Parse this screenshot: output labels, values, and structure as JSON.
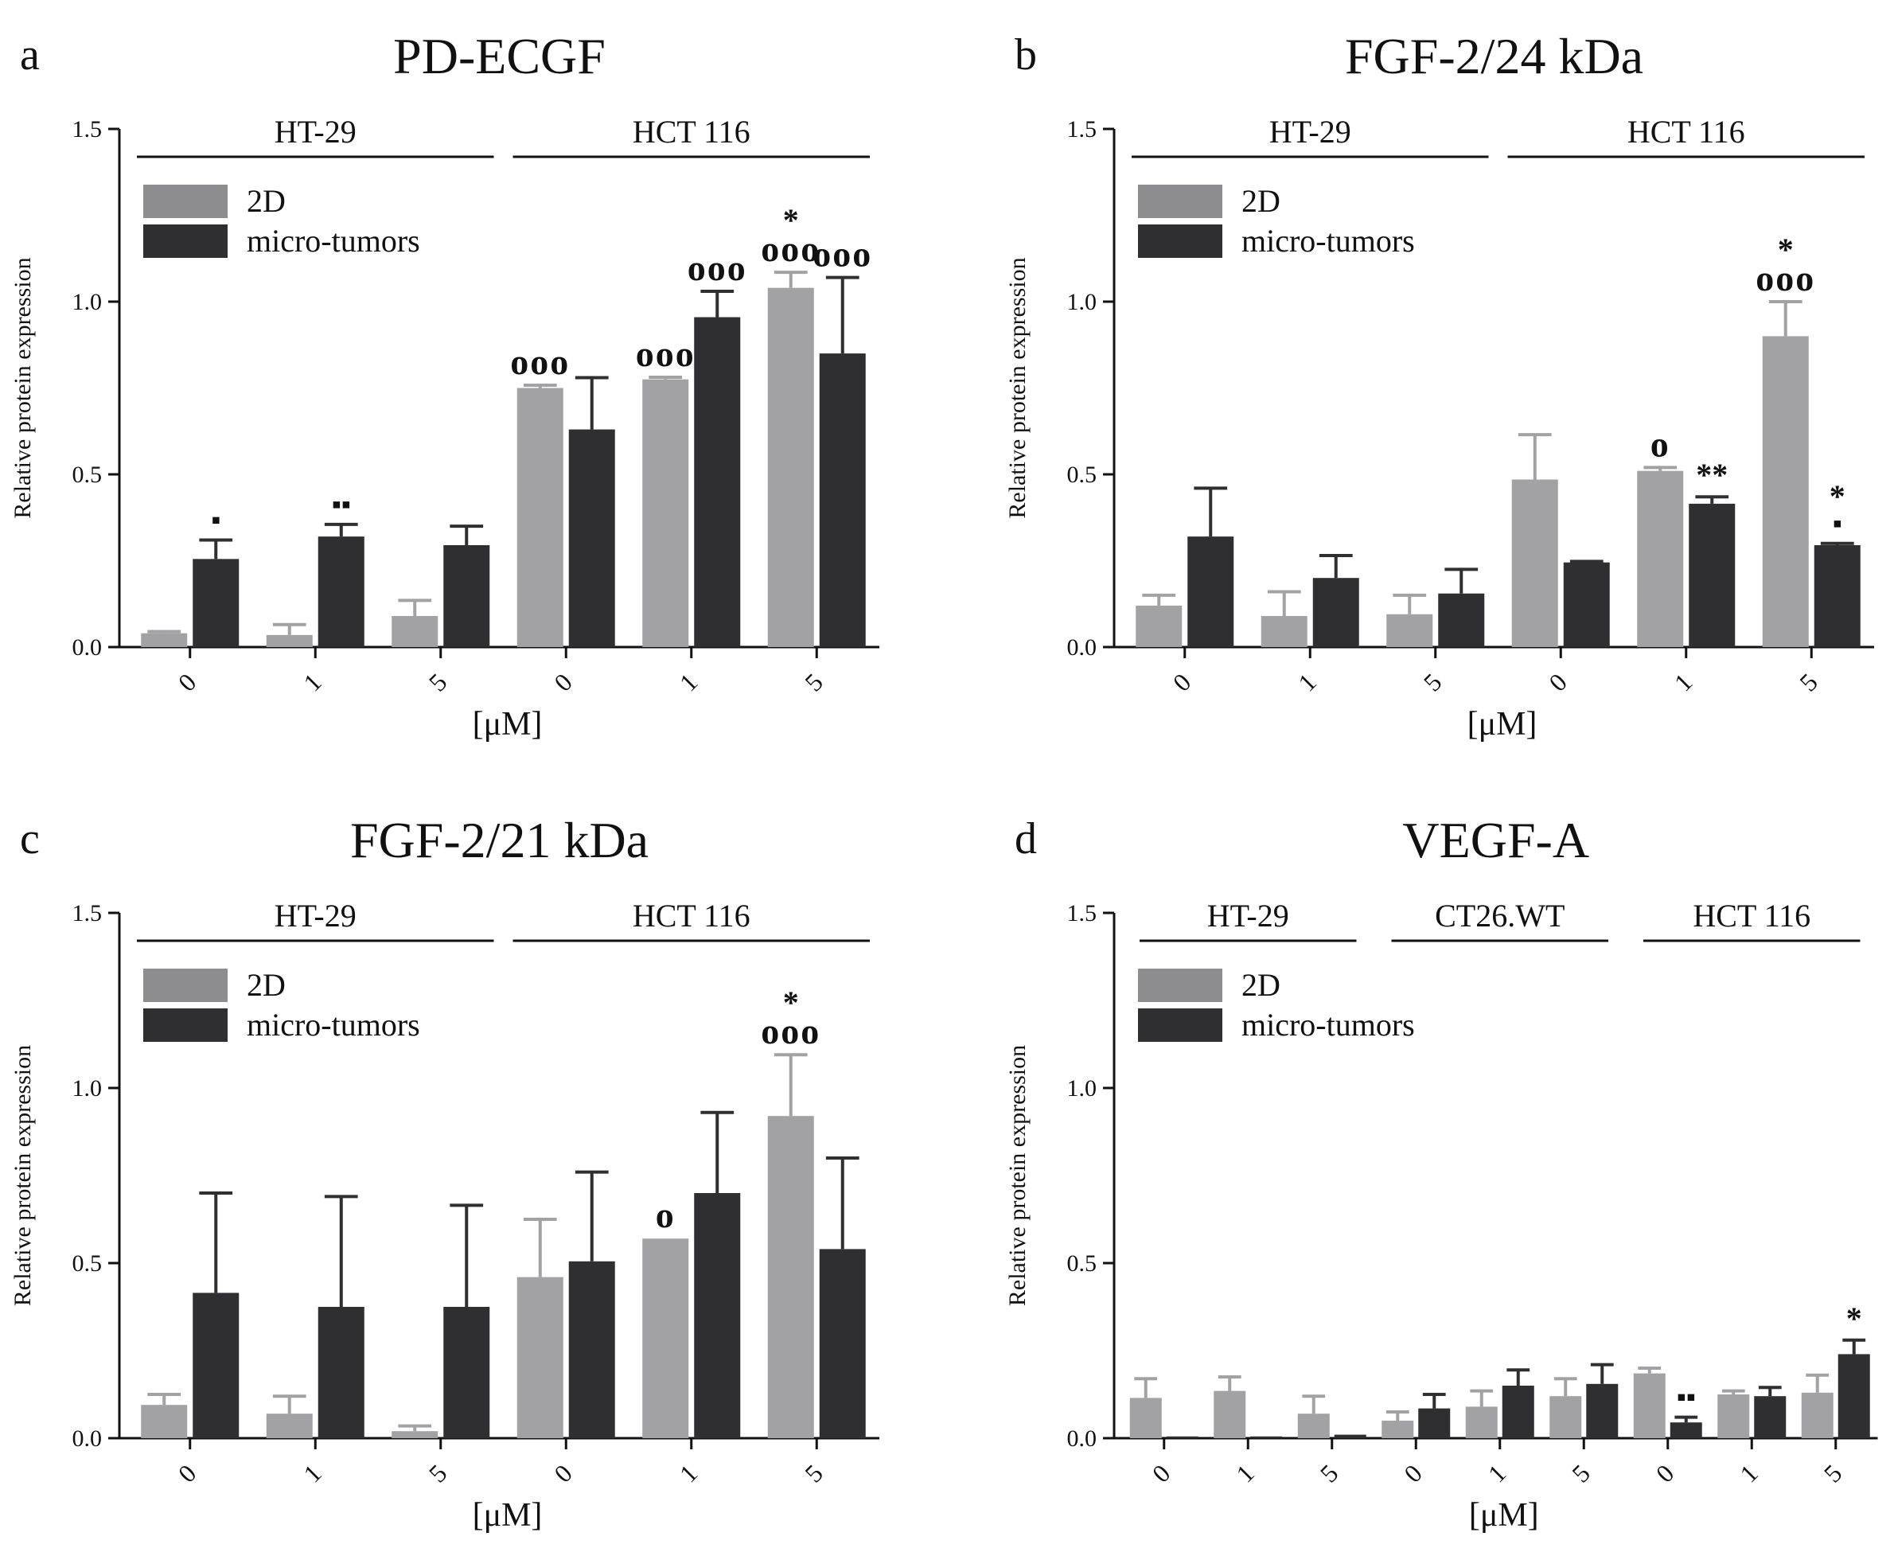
{
  "colors": {
    "twod": "#a2a2a4",
    "micro": "#2f2f31",
    "axis": "#111111",
    "legend_twod": "#8d8d8f"
  },
  "units_label": "[μM]",
  "ylabel": "Relative protein expression",
  "legend": [
    "2D",
    "micro-tumors"
  ],
  "chart_data": [
    {
      "type": "bar",
      "panel_letter": "a",
      "title": "PD-ECGF",
      "ylabel": "Relative protein expression",
      "xlabel": "[μM]",
      "ylim": [
        0,
        1.5
      ],
      "yticks": [
        "0.0",
        "0.5",
        "1.0",
        "1.5"
      ],
      "groups": [
        "HT-29",
        "HCT 116"
      ],
      "categories": [
        "0",
        "1",
        "5",
        "0",
        "1",
        "5"
      ],
      "series": [
        {
          "name": "2D",
          "values": [
            0.04,
            0.035,
            0.09,
            0.75,
            0.775,
            1.04
          ],
          "errors": [
            0.005,
            0.03,
            0.045,
            0.008,
            0.006,
            0.045
          ]
        },
        {
          "name": "micro-tumors",
          "values": [
            0.255,
            0.32,
            0.295,
            0.63,
            0.955,
            0.85
          ],
          "errors": [
            0.055,
            0.035,
            0.055,
            0.15,
            0.075,
            0.22
          ]
        }
      ],
      "annotations": [
        {
          "series": 1,
          "index": 0,
          "text": "▪"
        },
        {
          "series": 1,
          "index": 1,
          "text": "▪▪"
        },
        {
          "series": 0,
          "index": 3,
          "text": "ooo"
        },
        {
          "series": 0,
          "index": 4,
          "text": "ooo"
        },
        {
          "series": 1,
          "index": 4,
          "text": "ooo"
        },
        {
          "series": 0,
          "index": 5,
          "text": "ooo"
        },
        {
          "series": 0,
          "index": 5,
          "text": "*"
        },
        {
          "series": 1,
          "index": 5,
          "text": "ooo"
        }
      ]
    },
    {
      "type": "bar",
      "panel_letter": "b",
      "title": "FGF-2/24 kDa",
      "ylabel": "Relative protein expression",
      "xlabel": "[μM]",
      "ylim": [
        0,
        1.5
      ],
      "yticks": [
        "0.0",
        "0.5",
        "1.0",
        "1.5"
      ],
      "groups": [
        "HT-29",
        "HCT 116"
      ],
      "categories": [
        "0",
        "1",
        "5",
        "0",
        "1",
        "5"
      ],
      "series": [
        {
          "name": "2D",
          "values": [
            0.12,
            0.09,
            0.095,
            0.485,
            0.51,
            0.9
          ],
          "errors": [
            0.03,
            0.07,
            0.055,
            0.13,
            0.01,
            0.1
          ]
        },
        {
          "name": "micro-tumors",
          "values": [
            0.32,
            0.2,
            0.155,
            0.245,
            0.415,
            0.295
          ],
          "errors": [
            0.14,
            0.065,
            0.07,
            0.003,
            0.02,
            0.005
          ]
        }
      ],
      "annotations": [
        {
          "series": 0,
          "index": 4,
          "text": "o"
        },
        {
          "series": 1,
          "index": 4,
          "text": "**"
        },
        {
          "series": 0,
          "index": 5,
          "text": "ooo"
        },
        {
          "series": 0,
          "index": 5,
          "text": "*"
        },
        {
          "series": 1,
          "index": 5,
          "text": "▪"
        },
        {
          "series": 1,
          "index": 5,
          "text": "*"
        }
      ]
    },
    {
      "type": "bar",
      "panel_letter": "c",
      "title": "FGF-2/21 kDa",
      "ylabel": "Relative protein expression",
      "xlabel": "[μM]",
      "ylim": [
        0,
        1.5
      ],
      "yticks": [
        "0.0",
        "0.5",
        "1.0",
        "1.5"
      ],
      "groups": [
        "HT-29",
        "HCT 116"
      ],
      "categories": [
        "0",
        "1",
        "5",
        "0",
        "1",
        "5"
      ],
      "series": [
        {
          "name": "2D",
          "values": [
            0.095,
            0.07,
            0.02,
            0.46,
            0.57,
            0.92
          ],
          "errors": [
            0.03,
            0.05,
            0.015,
            0.165,
            0.0,
            0.175
          ]
        },
        {
          "name": "micro-tumors",
          "values": [
            0.415,
            0.375,
            0.375,
            0.505,
            0.7,
            0.54
          ],
          "errors": [
            0.285,
            0.315,
            0.29,
            0.255,
            0.23,
            0.26
          ]
        }
      ],
      "annotations": [
        {
          "series": 0,
          "index": 4,
          "text": "o"
        },
        {
          "series": 0,
          "index": 5,
          "text": "ooo"
        },
        {
          "series": 0,
          "index": 5,
          "text": "*"
        }
      ]
    },
    {
      "type": "bar",
      "panel_letter": "d",
      "title": "VEGF-A",
      "ylabel": "Relative protein expression",
      "xlabel": "[μM]",
      "ylim": [
        0,
        1.5
      ],
      "yticks": [
        "0.0",
        "0.5",
        "1.0",
        "1.5"
      ],
      "groups": [
        "HT-29",
        "CT26.WT",
        "HCT 116"
      ],
      "categories": [
        "0",
        "1",
        "5",
        "0",
        "1",
        "5",
        "0",
        "1",
        "5"
      ],
      "series": [
        {
          "name": "2D",
          "values": [
            0.115,
            0.135,
            0.07,
            0.05,
            0.09,
            0.12,
            0.185,
            0.125,
            0.13
          ],
          "errors": [
            0.055,
            0.04,
            0.05,
            0.025,
            0.045,
            0.05,
            0.015,
            0.01,
            0.05
          ]
        },
        {
          "name": "micro-tumors",
          "values": [
            0.005,
            0.005,
            0.01,
            0.085,
            0.15,
            0.155,
            0.045,
            0.12,
            0.24
          ],
          "errors": [
            0.0,
            0.0,
            0.0,
            0.04,
            0.045,
            0.055,
            0.015,
            0.025,
            0.04
          ]
        }
      ],
      "annotations": [
        {
          "series": 1,
          "index": 6,
          "text": "▪▪"
        },
        {
          "series": 1,
          "index": 8,
          "text": "*"
        }
      ]
    }
  ]
}
